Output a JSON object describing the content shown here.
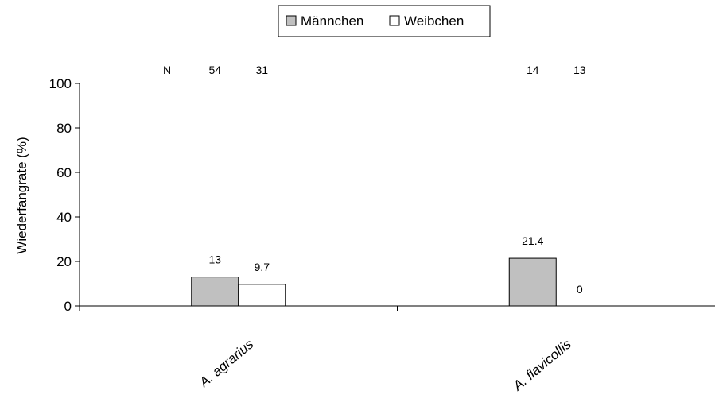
{
  "chart_data": {
    "type": "bar",
    "categories": [
      "A. agrarius",
      "A. flavicollis"
    ],
    "series": [
      {
        "name": "Männchen",
        "values": [
          13,
          21.4
        ],
        "color": "#c0c0c0"
      },
      {
        "name": "Weibchen",
        "values": [
          9.7,
          0
        ],
        "color": "#ffffff"
      }
    ],
    "data_labels": [
      [
        "13",
        "21.4"
      ],
      [
        "9.7",
        "0"
      ]
    ],
    "n_label": "N",
    "n_values": [
      [
        "54",
        "31"
      ],
      [
        "14",
        "13"
      ]
    ],
    "ylabel": "Wiederfangrate (%)",
    "xlabel": "",
    "ylim": [
      0,
      100
    ],
    "yticks": [
      0,
      20,
      40,
      60,
      80,
      100
    ],
    "legend_position": "top-center",
    "grid": false,
    "bar_edge_color": "#000000"
  }
}
